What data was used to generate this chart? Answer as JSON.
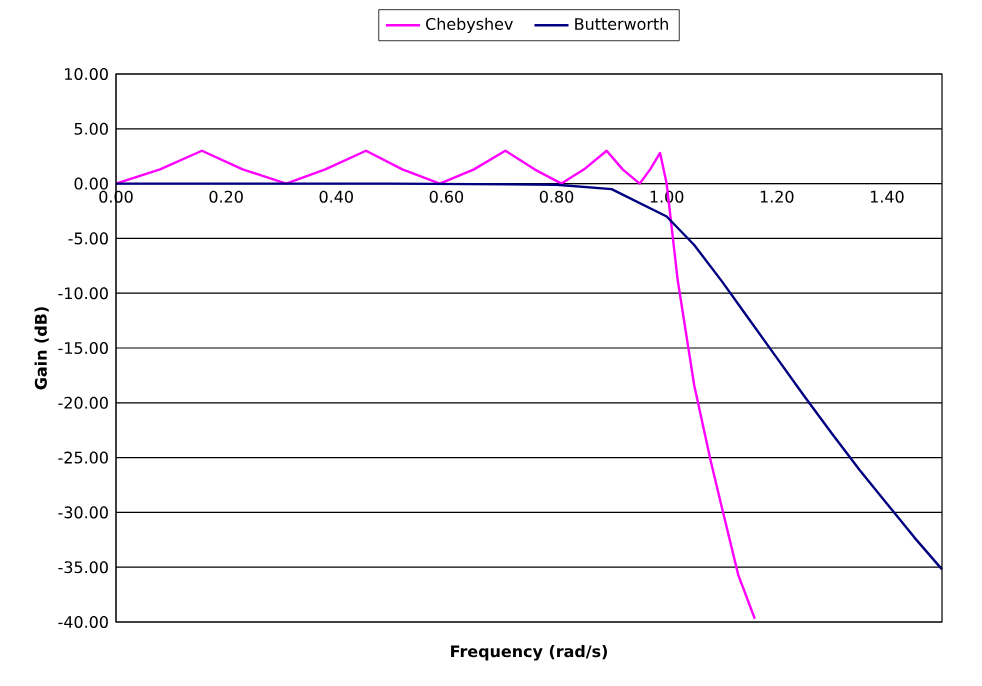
{
  "chart_data": {
    "type": "line",
    "xlabel": "Frequency (rad/s)",
    "ylabel": "Gain (dB)",
    "xlim": [
      0,
      1.5
    ],
    "ylim": [
      -40,
      10
    ],
    "xticks": [
      {
        "value": 0,
        "label": "0.00"
      },
      {
        "value": 0.2,
        "label": "0.20"
      },
      {
        "value": 0.4,
        "label": "0.40"
      },
      {
        "value": 0.6,
        "label": "0.60"
      },
      {
        "value": 0.8,
        "label": "0.80"
      },
      {
        "value": 1.0,
        "label": "1.00"
      },
      {
        "value": 1.2,
        "label": "1.20"
      },
      {
        "value": 1.4,
        "label": "1.40"
      }
    ],
    "yticks": [
      {
        "value": 10,
        "label": "10.00"
      },
      {
        "value": 5,
        "label": "5.00"
      },
      {
        "value": 0,
        "label": "0.00"
      },
      {
        "value": -5,
        "label": "-5.00"
      },
      {
        "value": -10,
        "label": "-10.00"
      },
      {
        "value": -15,
        "label": "-15.00"
      },
      {
        "value": -20,
        "label": "-20.00"
      },
      {
        "value": -25,
        "label": "-25.00"
      },
      {
        "value": -30,
        "label": "-30.00"
      },
      {
        "value": -35,
        "label": "-35.00"
      },
      {
        "value": -40,
        "label": "-40.00"
      }
    ],
    "grid": "y",
    "legend": "top",
    "marker": "none",
    "line_style": "solid",
    "series": [
      {
        "name": "Chebyshev",
        "color": "#ff00ff",
        "x": [
          0,
          0.08,
          0.156,
          0.23,
          0.309,
          0.38,
          0.454,
          0.52,
          0.588,
          0.65,
          0.707,
          0.76,
          0.809,
          0.85,
          0.891,
          0.92,
          0.951,
          0.97,
          0.988,
          1.0,
          1.02,
          1.05,
          1.08,
          1.1,
          1.13,
          1.16
        ],
        "values": [
          0,
          1.3,
          3,
          1.3,
          0,
          1.3,
          3,
          1.3,
          0,
          1.3,
          3,
          1.3,
          0,
          1.3,
          3,
          1.3,
          0,
          1.3,
          2.8,
          0,
          -8.8,
          -18.4,
          -25.3,
          -29.5,
          -35.7,
          -39.7
        ]
      },
      {
        "name": "Butterworth",
        "color": "#000080",
        "x": [
          0,
          0.5,
          0.8,
          0.9,
          1.0,
          1.05,
          1.1,
          1.15,
          1.2,
          1.25,
          1.3,
          1.35,
          1.4,
          1.45,
          1.5
        ],
        "values": [
          0,
          0,
          -0.1,
          -0.5,
          -3.0,
          -5.6,
          -8.9,
          -12.4,
          -15.9,
          -19.4,
          -22.8,
          -26.1,
          -29.2,
          -32.3,
          -35.2
        ]
      }
    ]
  }
}
